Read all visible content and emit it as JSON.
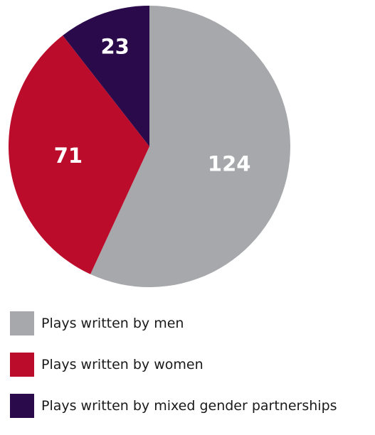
{
  "chart_data": {
    "type": "pie",
    "title": "",
    "slices": [
      {
        "label": "Plays written by men",
        "value": 124,
        "color": "#a7a8ab"
      },
      {
        "label": "Plays written by women",
        "value": 71,
        "color": "#bb0d2b"
      },
      {
        "label": "Plays written by mixed gender partnerships",
        "value": 23,
        "color": "#2a0a4a"
      }
    ],
    "start": "12 o'clock",
    "direction": "clockwise",
    "legend_position": "bottom-left"
  }
}
